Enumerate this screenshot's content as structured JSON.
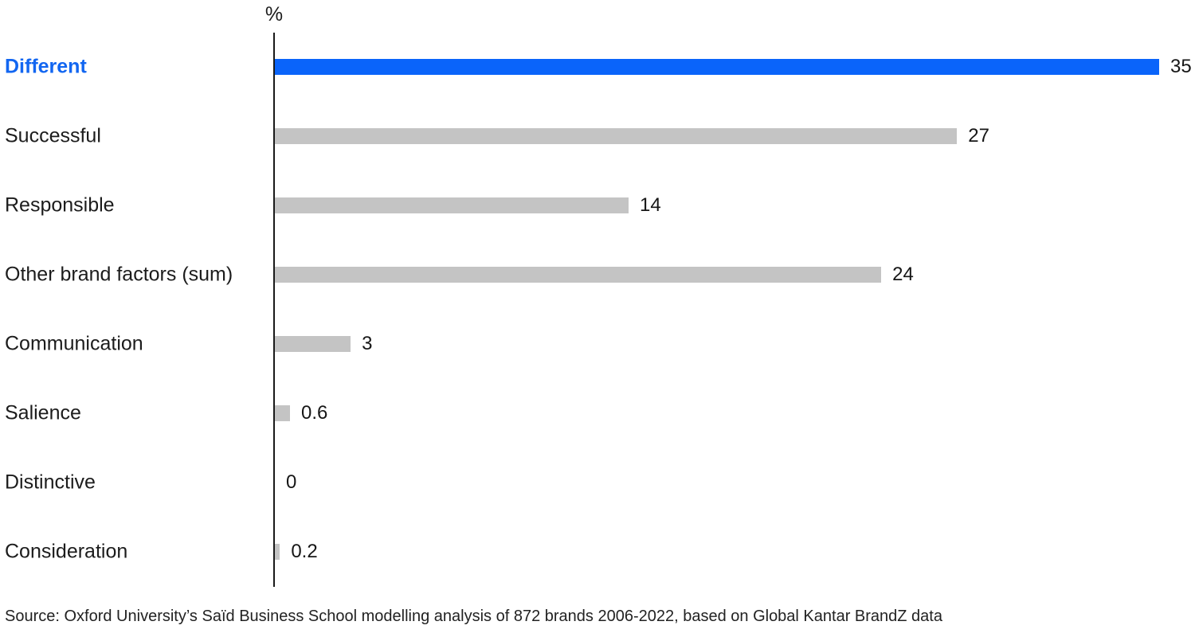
{
  "chart_data": {
    "type": "bar",
    "orientation": "horizontal",
    "unit_label": "%",
    "categories": [
      "Different",
      "Successful",
      "Responsible",
      "Other brand factors (sum)",
      "Communication",
      "Salience",
      "Distinctive",
      "Consideration"
    ],
    "values": [
      35,
      27,
      14,
      24,
      3,
      0.6,
      0,
      0.2
    ],
    "value_labels": [
      "35",
      "27",
      "14",
      "24",
      "3",
      "0.6",
      "0",
      "0.2"
    ],
    "highlighted_category": "Different",
    "xlim": [
      0,
      35
    ],
    "grid": false,
    "legend": "none",
    "colors": {
      "highlight_bar": "#0a64fa",
      "highlight_label": "#1266f1",
      "default_bar": "#c4c4c4",
      "text": "#1c1c1c"
    }
  },
  "footer": {
    "source": "Source: Oxford University’s Saïd Business School modelling analysis of 872 brands 2006-2022, based on Global Kantar BrandZ data"
  }
}
